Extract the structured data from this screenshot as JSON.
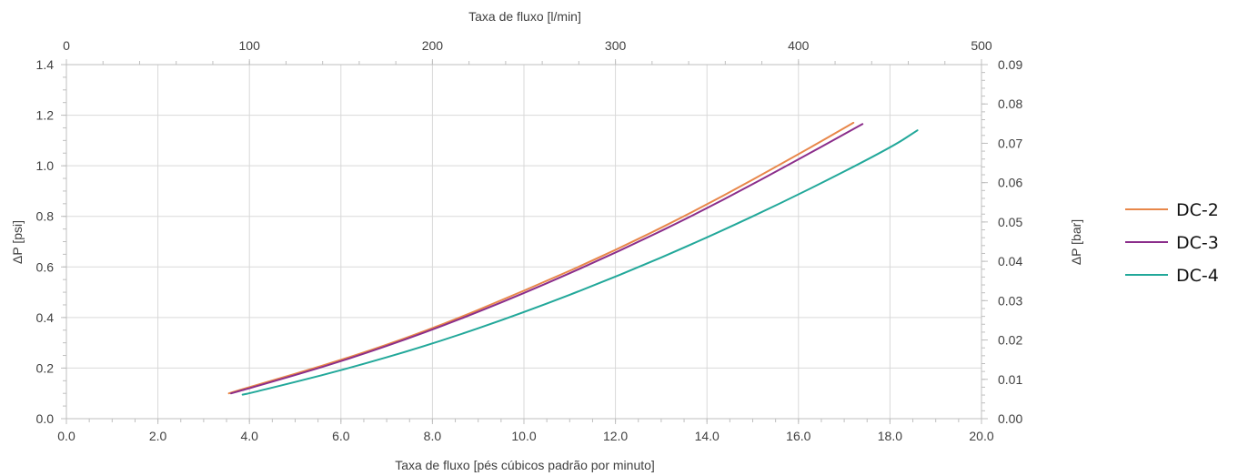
{
  "chart_data": {
    "type": "line",
    "xlabel_bottom": "Taxa de fluxo [pés cúbicos padrão por minuto]",
    "xlabel_top": "Taxa de fluxo [l/min]",
    "ylabel_left": "ΔP [psi]",
    "ylabel_right": "ΔP [bar]",
    "xlim": [
      0,
      20
    ],
    "ylim": [
      0,
      1.4
    ],
    "x_top_lim": [
      0,
      500
    ],
    "y_right_lim": [
      0,
      0.09
    ],
    "x_ticks": [
      "0.0",
      "2.0",
      "4.0",
      "6.0",
      "8.0",
      "10.0",
      "12.0",
      "14.0",
      "16.0",
      "18.0",
      "20.0"
    ],
    "x_tick_values": [
      0,
      2,
      4,
      6,
      8,
      10,
      12,
      14,
      16,
      18,
      20
    ],
    "y_ticks": [
      "0.0",
      "0.2",
      "0.4",
      "0.6",
      "0.8",
      "1.0",
      "1.2",
      "1.4"
    ],
    "y_tick_values": [
      0,
      0.2,
      0.4,
      0.6,
      0.8,
      1.0,
      1.2,
      1.4
    ],
    "x_top_ticks": [
      "0",
      "100",
      "200",
      "300",
      "400",
      "500"
    ],
    "x_top_tick_values": [
      0,
      100,
      200,
      300,
      400,
      500
    ],
    "y_right_ticks": [
      "0.00",
      "0.01",
      "0.02",
      "0.03",
      "0.04",
      "0.05",
      "0.06",
      "0.07",
      "0.08",
      "0.09"
    ],
    "y_right_tick_values": [
      0,
      0.01,
      0.02,
      0.03,
      0.04,
      0.05,
      0.06,
      0.07,
      0.08,
      0.09
    ],
    "grid": true,
    "legend_position": "right",
    "series": [
      {
        "name": "DC-2",
        "color": "#E8874A",
        "x": [
          3.55,
          4.0,
          6.0,
          8.0,
          10.0,
          12.0,
          14.0,
          16.0,
          17.2
        ],
        "y": [
          0.1,
          0.125,
          0.23,
          0.355,
          0.505,
          0.665,
          0.845,
          1.045,
          1.17
        ]
      },
      {
        "name": "DC-3",
        "color": "#8B2E8B",
        "x": [
          3.6,
          4.0,
          6.0,
          8.0,
          10.0,
          12.0,
          14.0,
          16.0,
          17.4
        ],
        "y": [
          0.1,
          0.12,
          0.225,
          0.35,
          0.495,
          0.655,
          0.83,
          1.025,
          1.165
        ]
      },
      {
        "name": "DC-4",
        "color": "#22A89A",
        "x": [
          3.85,
          4.0,
          6.0,
          8.0,
          10.0,
          12.0,
          14.0,
          16.0,
          18.0,
          18.6
        ],
        "y": [
          0.095,
          0.1,
          0.19,
          0.295,
          0.42,
          0.56,
          0.715,
          0.885,
          1.07,
          1.14
        ]
      }
    ]
  }
}
